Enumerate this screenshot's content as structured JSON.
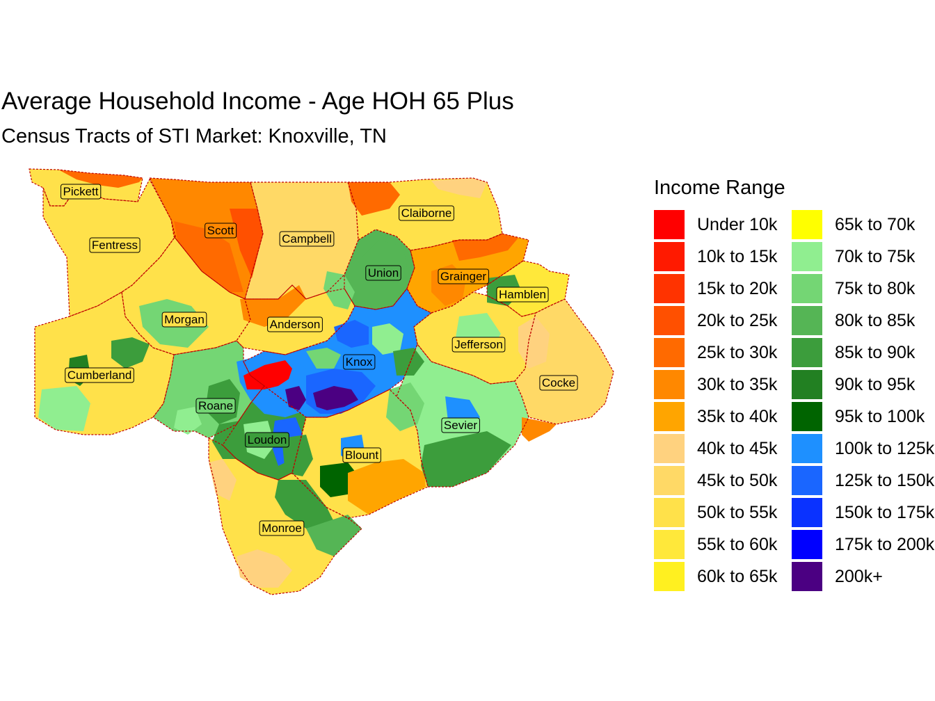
{
  "title": "Average Household Income - Age HOH 65 Plus",
  "subtitle": "Census Tracts of STI Market: Knoxville, TN",
  "legend": {
    "title": "Income Range",
    "items": [
      {
        "label": "Under 10k",
        "color": "#ff0000"
      },
      {
        "label": "10k to 15k",
        "color": "#ff1a00"
      },
      {
        "label": "15k to 20k",
        "color": "#ff3300"
      },
      {
        "label": "20k to 25k",
        "color": "#ff5000"
      },
      {
        "label": "25k to 30k",
        "color": "#ff6a00"
      },
      {
        "label": "30k to 35k",
        "color": "#ff8800"
      },
      {
        "label": "35k to 40k",
        "color": "#ffa500"
      },
      {
        "label": "40k to 45k",
        "color": "#ffd27f"
      },
      {
        "label": "45k to 50k",
        "color": "#ffd966"
      },
      {
        "label": "50k to 55k",
        "color": "#ffe14a"
      },
      {
        "label": "55k to 60k",
        "color": "#ffe83a"
      },
      {
        "label": "60k to 65k",
        "color": "#fff020"
      },
      {
        "label": "65k to 70k",
        "color": "#ffff00"
      },
      {
        "label": "70k to 75k",
        "color": "#90ee90"
      },
      {
        "label": "75k to 80k",
        "color": "#74d674"
      },
      {
        "label": "80k to 85k",
        "color": "#55b555"
      },
      {
        "label": "85k to 90k",
        "color": "#3c9d3c"
      },
      {
        "label": "90k to 95k",
        "color": "#228022"
      },
      {
        "label": "95k to 100k",
        "color": "#006400"
      },
      {
        "label": "100k to 125k",
        "color": "#1e90ff"
      },
      {
        "label": "125k to 150k",
        "color": "#1a66ff"
      },
      {
        "label": "150k to 175k",
        "color": "#0a32ff"
      },
      {
        "label": "175k to 200k",
        "color": "#0000ff"
      },
      {
        "label": "200k+",
        "color": "#4b0082"
      }
    ]
  },
  "counties": [
    {
      "name": "Pickett",
      "color": "#ffe14a"
    },
    {
      "name": "Scott",
      "color": "#ff8800"
    },
    {
      "name": "Campbell",
      "color": "#ffd966"
    },
    {
      "name": "Claiborne",
      "color": "#ffe14a"
    },
    {
      "name": "Fentress",
      "color": "#ffe14a"
    },
    {
      "name": "Union",
      "color": "#55b555"
    },
    {
      "name": "Grainger",
      "color": "#ffa500"
    },
    {
      "name": "Hamblen",
      "color": "#ffe83a"
    },
    {
      "name": "Morgan",
      "color": "#ffe14a"
    },
    {
      "name": "Anderson",
      "color": "#ffe14a"
    },
    {
      "name": "Jefferson",
      "color": "#ffe14a"
    },
    {
      "name": "Knox",
      "color": "#1e90ff"
    },
    {
      "name": "Cumberland",
      "color": "#ffe14a"
    },
    {
      "name": "Cocke",
      "color": "#ffd966"
    },
    {
      "name": "Roane",
      "color": "#74d674"
    },
    {
      "name": "Sevier",
      "color": "#90ee90"
    },
    {
      "name": "Loudon",
      "color": "#3c9d3c"
    },
    {
      "name": "Blount",
      "color": "#ffe14a"
    },
    {
      "name": "Monroe",
      "color": "#ffe14a"
    }
  ]
}
